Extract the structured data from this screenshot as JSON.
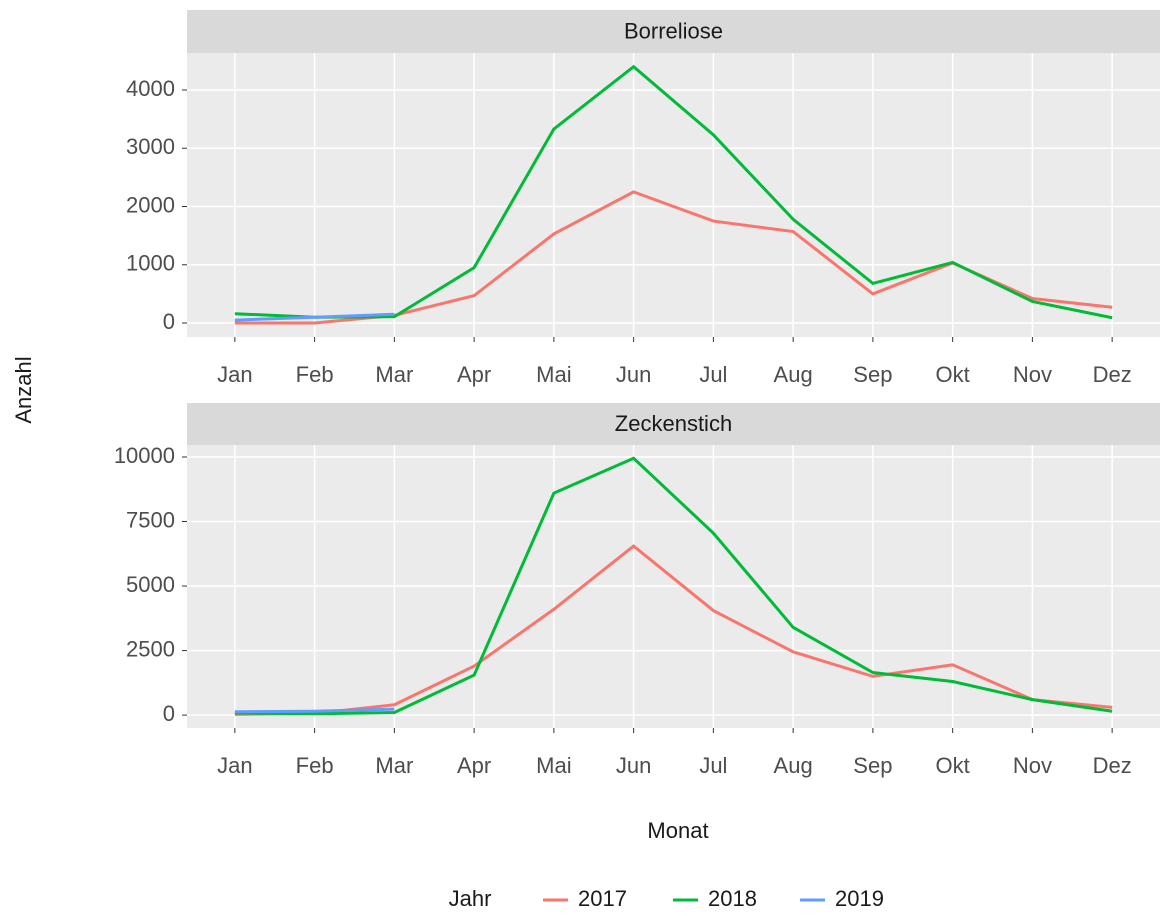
{
  "chart_data": [
    {
      "type": "line",
      "title": "Borreliose",
      "categories": [
        "Jan",
        "Feb",
        "Mar",
        "Apr",
        "Mai",
        "Jun",
        "Jul",
        "Aug",
        "Sep",
        "Okt",
        "Nov",
        "Dez"
      ],
      "series": [
        {
          "name": "2017",
          "color": "#F8766D",
          "values": [
            0,
            0,
            130,
            470,
            1530,
            2250,
            1750,
            1570,
            500,
            1030,
            420,
            270
          ]
        },
        {
          "name": "2018",
          "color": "#00BA38",
          "values": [
            160,
            100,
            110,
            950,
            3330,
            4400,
            3230,
            1780,
            680,
            1040,
            370,
            90
          ]
        },
        {
          "name": "2019",
          "color": "#619CFF",
          "values": [
            50,
            100,
            150,
            null,
            null,
            null,
            null,
            null,
            null,
            null,
            null,
            null
          ]
        }
      ],
      "ylim": [
        -240,
        4635
      ],
      "yticks": [
        0,
        1000,
        2000,
        3000,
        4000
      ],
      "grid": true
    },
    {
      "type": "line",
      "title": "Zeckenstich",
      "categories": [
        "Jan",
        "Feb",
        "Mar",
        "Apr",
        "Mai",
        "Jun",
        "Jul",
        "Aug",
        "Sep",
        "Okt",
        "Nov",
        "Dez"
      ],
      "series": [
        {
          "name": "2017",
          "color": "#F8766D",
          "values": [
            30,
            60,
            400,
            1900,
            4100,
            6550,
            4050,
            2450,
            1500,
            1950,
            600,
            300
          ]
        },
        {
          "name": "2018",
          "color": "#00BA38",
          "values": [
            80,
            50,
            100,
            1550,
            8600,
            9950,
            7050,
            3400,
            1650,
            1300,
            600,
            150
          ]
        },
        {
          "name": "2019",
          "color": "#619CFF",
          "values": [
            130,
            150,
            230,
            null,
            null,
            null,
            null,
            null,
            null,
            null,
            null,
            null
          ]
        }
      ],
      "ylim": [
        -500,
        10465
      ],
      "yticks": [
        0,
        2500,
        5000,
        7500,
        10000
      ],
      "grid": true
    }
  ],
  "y_label": "Anzahl",
  "x_label": "Monat",
  "legend": {
    "title": "Jahr",
    "position": "bottom"
  }
}
